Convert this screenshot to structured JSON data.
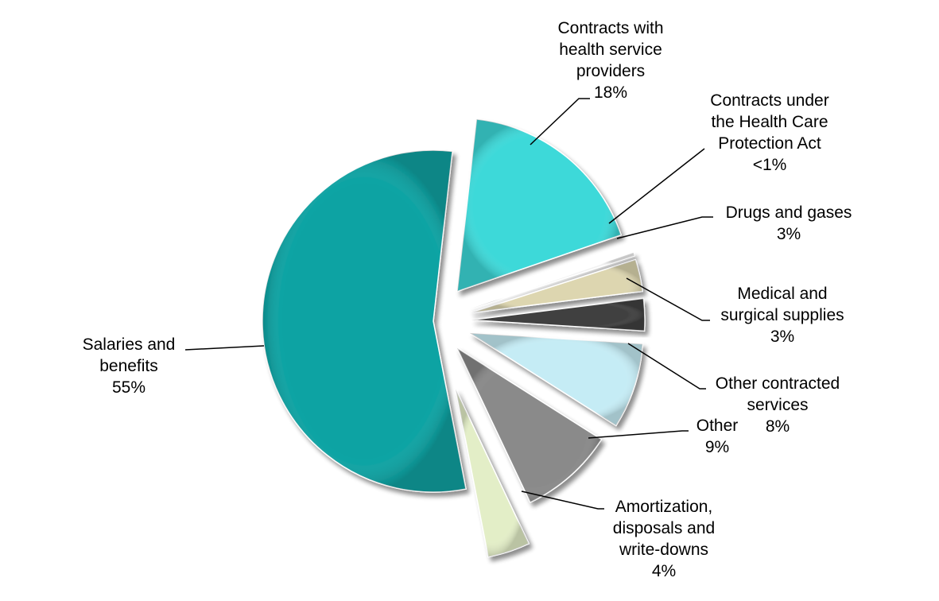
{
  "chart_data": {
    "type": "pie",
    "title": "",
    "slices": [
      {
        "name": "Salaries and benefits",
        "label_lines": [
          "Salaries and",
          "benefits"
        ],
        "percent_label": "55%",
        "value": 55,
        "color": "#0aa3a3"
      },
      {
        "name": "Contracts with health service providers",
        "label_lines": [
          "Contracts with",
          "health service",
          "providers"
        ],
        "percent_label": "18%",
        "value": 18,
        "color": "#3dd9d9"
      },
      {
        "name": "Contracts under the Health Care Protection Act",
        "label_lines": [
          "Contracts under",
          "the Health Care",
          "Protection Act"
        ],
        "percent_label": "<1%",
        "value": 0.3,
        "color": "#f2f2f2"
      },
      {
        "name": "Drugs and gases",
        "label_lines": [
          "Drugs and gases"
        ],
        "percent_label": "3%",
        "value": 3,
        "color": "#ddd6b0"
      },
      {
        "name": "Medical and surgical supplies",
        "label_lines": [
          "Medical and",
          "surgical supplies"
        ],
        "percent_label": "3%",
        "value": 3,
        "color": "#404040"
      },
      {
        "name": "Other contracted services",
        "label_lines": [
          "Other contracted",
          "services"
        ],
        "percent_label": "8%",
        "value": 8,
        "color": "#c5ecf5"
      },
      {
        "name": "Other",
        "label_lines": [
          "Other"
        ],
        "percent_label": "9%",
        "value": 9,
        "color": "#8a8a8a"
      },
      {
        "name": "Amortization, disposals and write-downs",
        "label_lines": [
          "Amortization,",
          "disposals and",
          "write-downs"
        ],
        "percent_label": "4%",
        "value": 4,
        "color": "#e3eec7"
      }
    ]
  }
}
